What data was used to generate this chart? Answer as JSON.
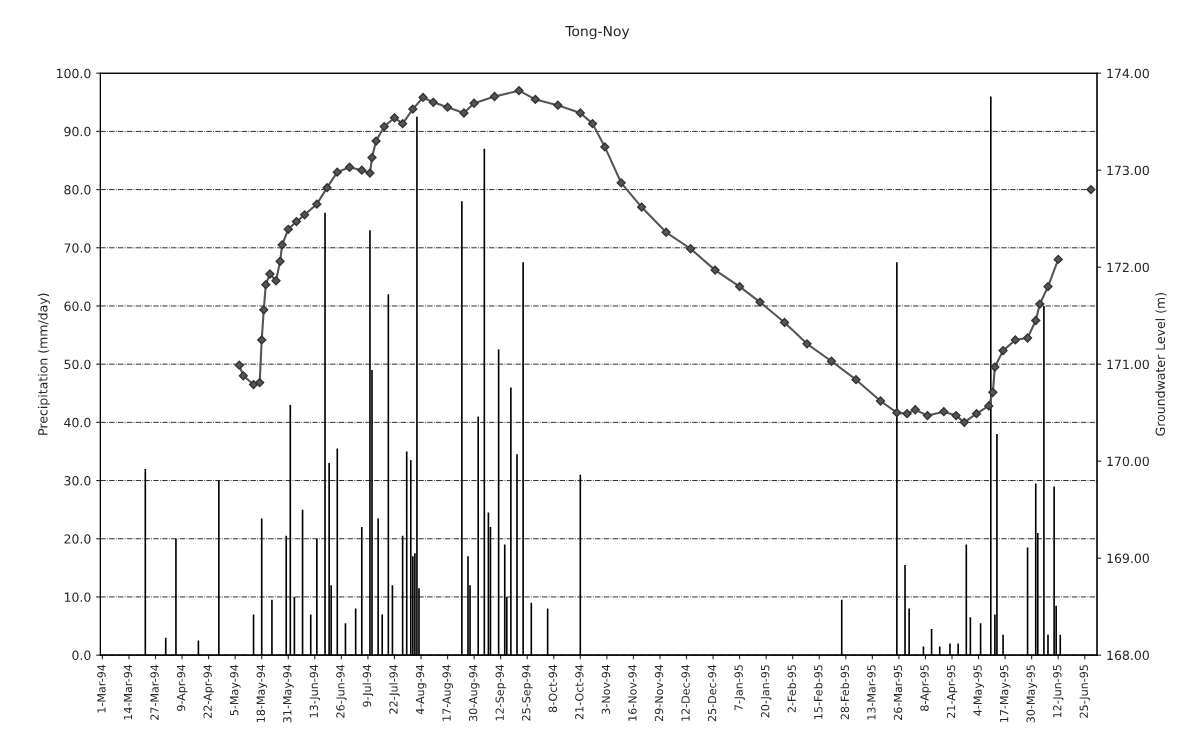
{
  "chart_data": {
    "type": "bar",
    "title": "Tong-Noy",
    "ylabel": "Precipitation (mm/day)",
    "y2label": "Groundwater Level (m)",
    "xlim": [
      "1994-02-28",
      "1995-07-01"
    ],
    "xticks": [
      {
        "value": "1994-03-01",
        "label": "1-Mar-94"
      },
      {
        "value": "1994-03-14",
        "label": "14-Mar-94"
      },
      {
        "value": "1994-03-27",
        "label": "27-Mar-94"
      },
      {
        "value": "1994-04-09",
        "label": "9-Apr-94"
      },
      {
        "value": "1994-04-22",
        "label": "22-Apr-94"
      },
      {
        "value": "1994-05-05",
        "label": "5-May-94"
      },
      {
        "value": "1994-05-18",
        "label": "18-May-94"
      },
      {
        "value": "1994-05-31",
        "label": "31-May-94"
      },
      {
        "value": "1994-06-13",
        "label": "13-Jun-94"
      },
      {
        "value": "1994-06-26",
        "label": "26-Jun-94"
      },
      {
        "value": "1994-07-09",
        "label": "9-Jul-94"
      },
      {
        "value": "1994-07-22",
        "label": "22-Jul-94"
      },
      {
        "value": "1994-08-04",
        "label": "4-Aug-94"
      },
      {
        "value": "1994-08-17",
        "label": "17-Aug-94"
      },
      {
        "value": "1994-08-30",
        "label": "30-Aug-94"
      },
      {
        "value": "1994-09-12",
        "label": "12-Sep-94"
      },
      {
        "value": "1994-09-25",
        "label": "25-Sep-94"
      },
      {
        "value": "1994-10-08",
        "label": "8-Oct-94"
      },
      {
        "value": "1994-10-21",
        "label": "21-Oct-94"
      },
      {
        "value": "1994-11-03",
        "label": "3-Nov-94"
      },
      {
        "value": "1994-11-16",
        "label": "16-Nov-94"
      },
      {
        "value": "1994-11-29",
        "label": "29-Nov-94"
      },
      {
        "value": "1994-12-12",
        "label": "12-Dec-94"
      },
      {
        "value": "1994-12-25",
        "label": "25-Dec-94"
      },
      {
        "value": "1995-01-07",
        "label": "7-Jan-95"
      },
      {
        "value": "1995-01-20",
        "label": "20-Jan-95"
      },
      {
        "value": "1995-02-02",
        "label": "2-Feb-95"
      },
      {
        "value": "1995-02-15",
        "label": "15-Feb-95"
      },
      {
        "value": "1995-02-28",
        "label": "28-Feb-95"
      },
      {
        "value": "1995-03-13",
        "label": "13-Mar-95"
      },
      {
        "value": "1995-03-26",
        "label": "26-Mar-95"
      },
      {
        "value": "1995-04-08",
        "label": "8-Apr-95"
      },
      {
        "value": "1995-04-21",
        "label": "21-Apr-95"
      },
      {
        "value": "1995-05-04",
        "label": "4-May-95"
      },
      {
        "value": "1995-05-17",
        "label": "17-May-95"
      },
      {
        "value": "1995-05-30",
        "label": "30-May-95"
      },
      {
        "value": "1995-06-12",
        "label": "12-Jun-95"
      },
      {
        "value": "1995-06-25",
        "label": "25-Jun-95"
      }
    ],
    "ylim": [
      0,
      100
    ],
    "yticks": [
      {
        "value": 0,
        "label": "0.0"
      },
      {
        "value": 10,
        "label": "10.0"
      },
      {
        "value": 20,
        "label": "20.0"
      },
      {
        "value": 30,
        "label": "30.0"
      },
      {
        "value": 40,
        "label": "40.0"
      },
      {
        "value": 50,
        "label": "50.0"
      },
      {
        "value": 60,
        "label": "60.0"
      },
      {
        "value": 70,
        "label": "70.0"
      },
      {
        "value": 80,
        "label": "80.0"
      },
      {
        "value": 90,
        "label": "90.0"
      },
      {
        "value": 100,
        "label": "100.0"
      }
    ],
    "y2lim": [
      168,
      174
    ],
    "y2ticks": [
      {
        "value": 168,
        "label": "168.00"
      },
      {
        "value": 169,
        "label": "169.00"
      },
      {
        "value": 170,
        "label": "170.00"
      },
      {
        "value": 171,
        "label": "171.00"
      },
      {
        "value": 172,
        "label": "172.00"
      },
      {
        "value": 173,
        "label": "173.00"
      },
      {
        "value": 174,
        "label": "174.00"
      }
    ],
    "grid": "y",
    "legend": false,
    "series": [
      {
        "color": "#000000",
        "x": [
          "1994-03-22",
          "1994-04-01",
          "1994-04-06",
          "1994-04-17",
          "1994-04-27",
          "1994-05-14",
          "1994-05-18",
          "1994-05-23",
          "1994-05-30",
          "1994-06-01",
          "1994-06-03",
          "1994-06-07",
          "1994-06-11",
          "1994-06-14",
          "1994-06-18",
          "1994-06-20",
          "1994-06-21",
          "1994-06-24",
          "1994-06-28",
          "1994-07-03",
          "1994-07-06",
          "1994-07-10",
          "1994-07-11",
          "1994-07-14",
          "1994-07-16",
          "1994-07-19",
          "1994-07-21",
          "1994-07-26",
          "1994-07-28",
          "1994-07-30",
          "1994-07-31",
          "1994-08-01",
          "1994-08-02",
          "1994-08-03",
          "1994-08-24",
          "1994-08-27",
          "1994-08-28",
          "1994-09-01",
          "1994-09-04",
          "1994-09-06",
          "1994-09-07",
          "1994-09-11",
          "1994-09-14",
          "1994-09-15",
          "1994-09-17",
          "1994-09-20",
          "1994-09-23",
          "1994-09-27",
          "1994-10-05",
          "1994-10-21",
          "1995-02-26",
          "1995-03-25",
          "1995-03-29",
          "1995-03-31",
          "1995-04-07",
          "1995-04-11",
          "1995-04-15",
          "1995-04-20",
          "1995-04-24",
          "1995-04-28",
          "1995-04-30",
          "1995-05-05",
          "1995-05-10",
          "1995-05-12",
          "1995-05-13",
          "1995-05-16",
          "1995-05-28",
          "1995-06-01",
          "1995-06-02",
          "1995-06-05",
          "1995-06-07",
          "1995-06-10",
          "1995-06-11",
          "1995-06-13"
        ],
        "values": [
          32,
          3,
          20,
          2.5,
          30,
          7,
          23.5,
          9.5,
          20.5,
          43,
          10,
          25,
          7,
          20,
          76,
          33,
          12,
          35.5,
          5.5,
          8,
          22,
          73,
          49,
          23.5,
          7,
          62,
          12,
          20.5,
          35,
          33.5,
          17,
          17.5,
          92.5,
          11.5,
          78,
          17,
          12,
          41,
          87,
          24.5,
          22,
          52.5,
          19,
          10,
          46,
          34.5,
          67.5,
          9,
          8,
          31,
          9.5,
          67.5,
          15.5,
          8,
          1.5,
          4.5,
          1.5,
          2,
          2,
          19,
          6.5,
          5.5,
          96,
          7,
          38,
          3.5,
          18.5,
          29.5,
          21,
          60,
          3.5,
          29,
          8.5,
          3.5
        ]
      },
      {
        "type": "line",
        "axis": "y2",
        "color": "#555555",
        "marker": "diamond",
        "line_style": "solid",
        "x": [
          "1994-05-07",
          "1994-05-09",
          "1994-05-14",
          "1994-05-17",
          "1994-05-18",
          "1994-05-19",
          "1994-05-20",
          "1994-05-22",
          "1994-05-25",
          "1994-05-27",
          "1994-05-28",
          "1994-05-31",
          "1994-06-04",
          "1994-06-08",
          "1994-06-14",
          "1994-06-19",
          "1994-06-24",
          "1994-06-30",
          "1994-07-06",
          "1994-07-10",
          "1994-07-11",
          "1994-07-13",
          "1994-07-17",
          "1994-07-22",
          "1994-07-26",
          "1994-07-31",
          "1994-08-05",
          "1994-08-10",
          "1994-08-17",
          "1994-08-25",
          "1994-08-30",
          "1994-09-09",
          "1994-09-21",
          "1994-09-29",
          "1994-10-10",
          "1994-10-21",
          "1994-10-27",
          "1994-11-02",
          "1994-11-10",
          "1994-11-20",
          "1994-12-02",
          "1994-12-14",
          "1994-12-26",
          "1995-01-07",
          "1995-01-17",
          "1995-01-29",
          "1995-02-09",
          "1995-02-21",
          "1995-03-05",
          "1995-03-17",
          "1995-03-25",
          "1995-03-30",
          "1995-04-03",
          "1995-04-09",
          "1995-04-17",
          "1995-04-23",
          "1995-04-27",
          "1995-05-03",
          "1995-05-09",
          "1995-05-11",
          "1995-05-12",
          "1995-05-16",
          "1995-05-22",
          "1995-05-28",
          "1995-06-01",
          "1995-06-03",
          "1995-06-07",
          "1995-06-12",
          "1995-06-20",
          "1995-06-28"
        ],
        "values": [
          170.99,
          170.88,
          170.79,
          170.81,
          171.25,
          171.56,
          171.82,
          171.93,
          171.86,
          172.06,
          172.23,
          172.39,
          172.47,
          172.54,
          172.65,
          172.82,
          172.98,
          173.03,
          173.0,
          172.97,
          173.13,
          173.3,
          173.45,
          173.54,
          173.48,
          173.63,
          173.75,
          173.7,
          173.65,
          173.59,
          173.69,
          173.76,
          173.82,
          173.73,
          173.67,
          173.59,
          173.48,
          173.24,
          172.87,
          172.62,
          172.36,
          172.19,
          171.97,
          171.8,
          171.64,
          171.43,
          171.21,
          171.03,
          170.84,
          170.62,
          170.5,
          170.49,
          170.53,
          170.47,
          170.51,
          170.47,
          170.4,
          170.49,
          170.57,
          170.71,
          170.97,
          171.14,
          171.25,
          171.27,
          171.45,
          171.62,
          171.8,
          172.08,
          null,
          172.8
        ]
      }
    ]
  }
}
